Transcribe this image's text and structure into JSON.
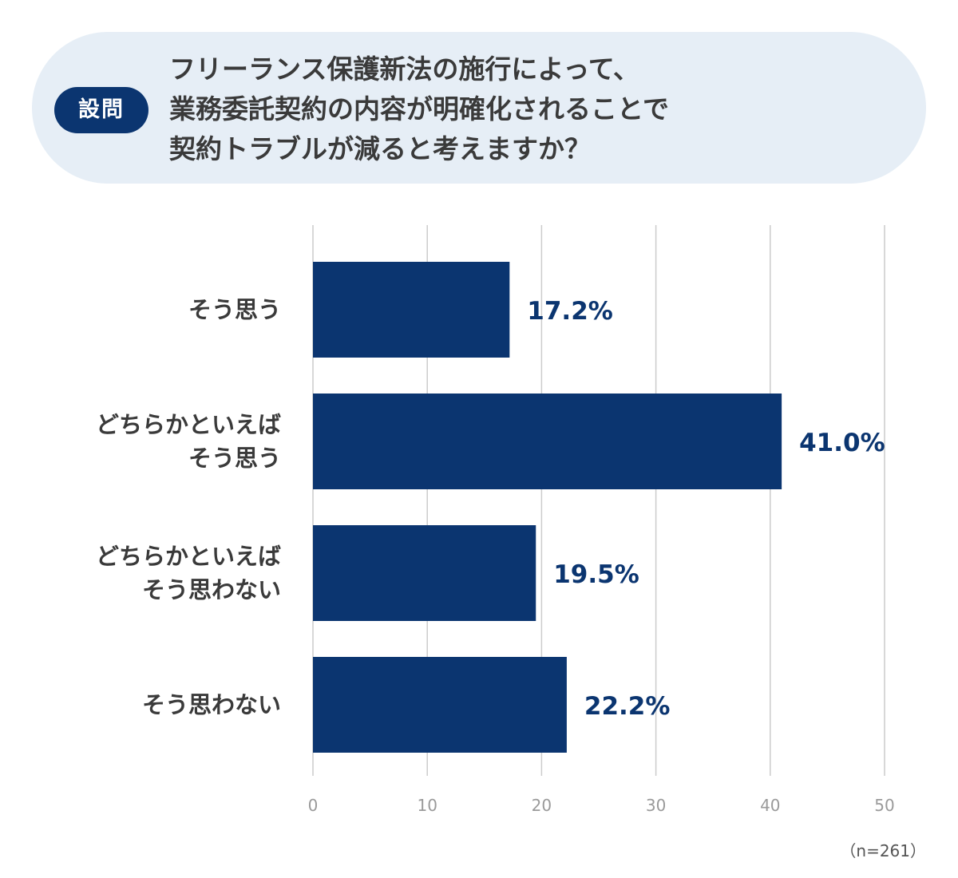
{
  "question": {
    "badge": "設問",
    "lines": [
      "フリーランス保護新法の施行によって、",
      "業務委託契約の内容が明確化されることで",
      "契約トラブルが減ると考えますか？"
    ]
  },
  "sample_note": "（n=261）",
  "colors": {
    "bar": "#0b3570",
    "value_text": "#0b3570",
    "question_bg": "#e6eef6",
    "grid": "#cccccc"
  },
  "chart_data": {
    "type": "bar",
    "orientation": "horizontal",
    "categories": [
      [
        "そう思う"
      ],
      [
        "どちらかといえば",
        "そう思う"
      ],
      [
        "どちらかといえば",
        "そう思わない"
      ],
      [
        "そう思わない"
      ]
    ],
    "values": [
      17.2,
      41.0,
      19.5,
      22.2
    ],
    "value_labels": [
      "17.2%",
      "41.0%",
      "19.5%",
      "22.2%"
    ],
    "xlim": [
      0,
      50
    ],
    "xticks": [
      0,
      10,
      20,
      30,
      40,
      50
    ],
    "grid": true
  }
}
